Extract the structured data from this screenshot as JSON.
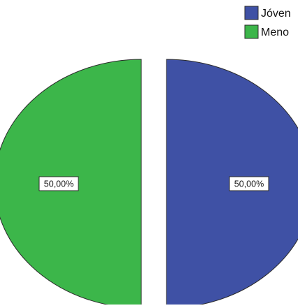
{
  "chart_data": {
    "type": "pie",
    "title": "",
    "legend_position": "top-right",
    "slices": [
      {
        "name": "Jóven",
        "value": 50,
        "label": "50,00%",
        "color": "#3f51a5"
      },
      {
        "name": "Meno",
        "value": 50,
        "label": "50,00%",
        "color": "#3cb64a"
      }
    ],
    "exploded": true
  }
}
